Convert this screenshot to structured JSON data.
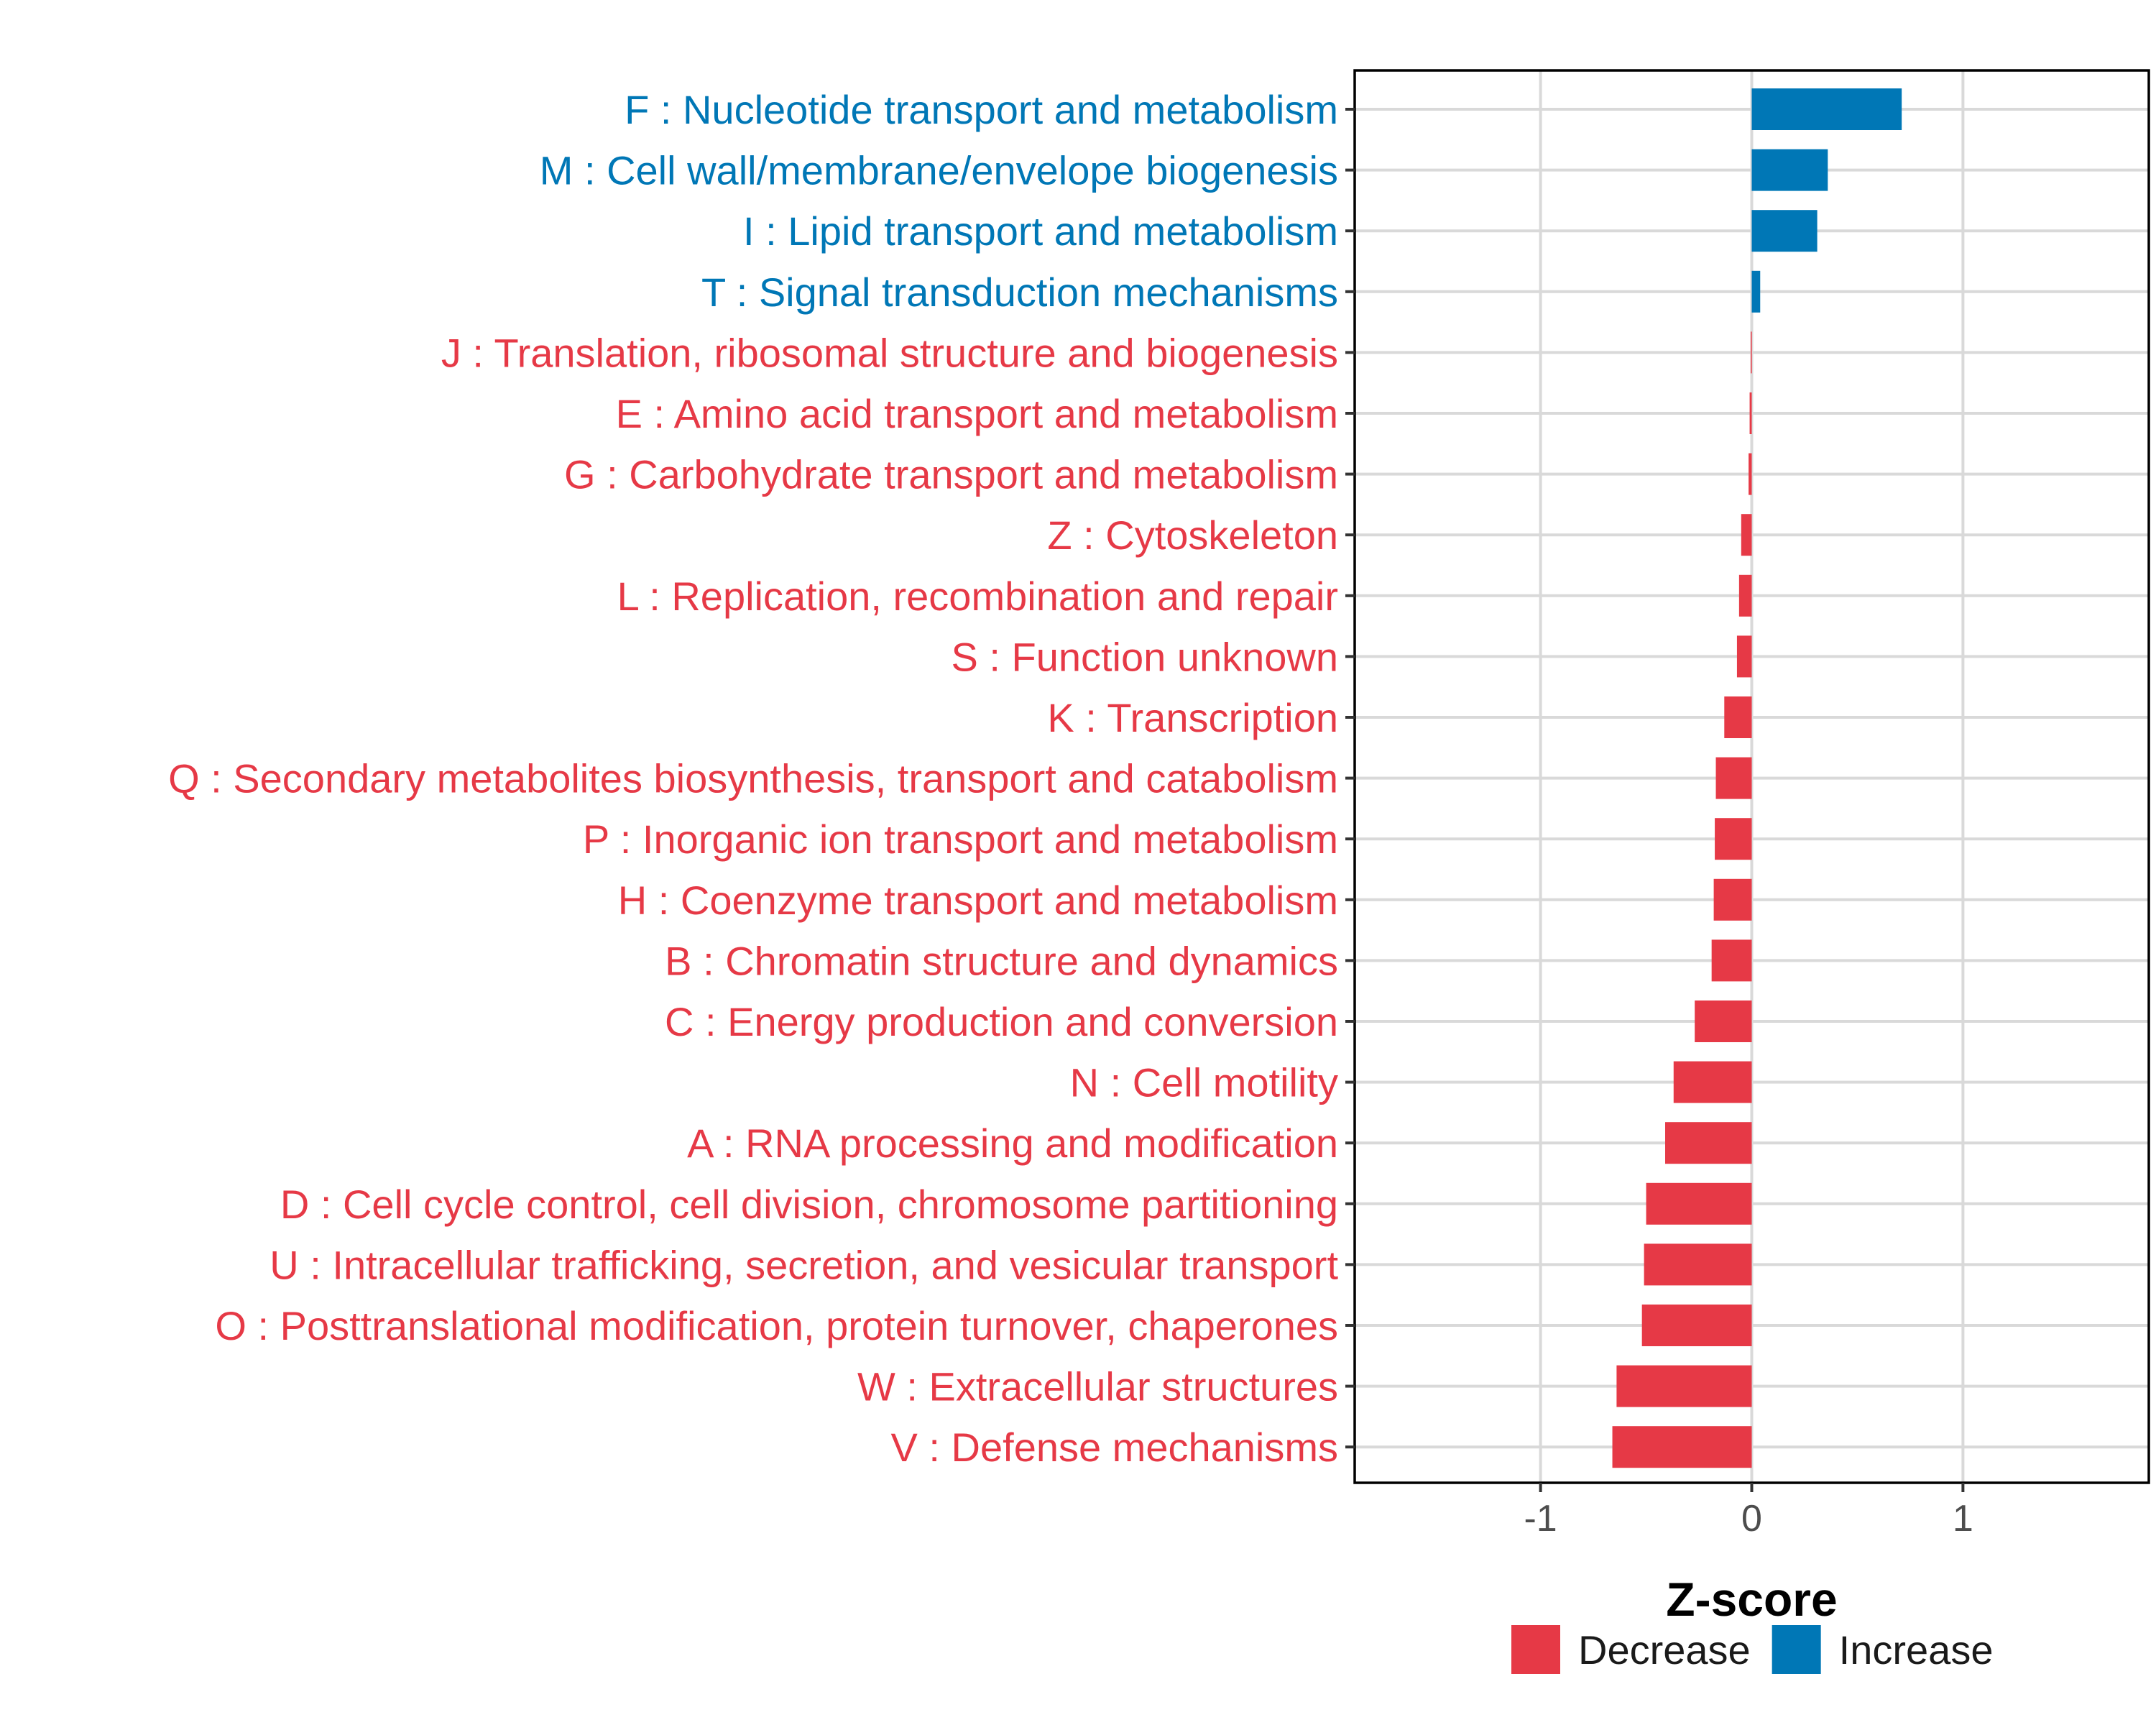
{
  "colors": {
    "decrease": "#E63946",
    "increase": "#0077B6"
  },
  "chart_data": {
    "type": "bar",
    "orientation": "horizontal",
    "title": "",
    "xlabel": "Z-score",
    "ylabel": "",
    "xlim": [
      -1.88,
      1.88
    ],
    "x_ticks": [
      {
        "value": -1,
        "label": "-1"
      },
      {
        "value": 0,
        "label": "0"
      },
      {
        "value": 1,
        "label": "1"
      }
    ],
    "grid": true,
    "legend_position": "bottom",
    "legend": [
      {
        "key": "decrease",
        "label": "Decrease"
      },
      {
        "key": "increase",
        "label": "Increase"
      }
    ],
    "categories": [
      "F : Nucleotide transport and metabolism",
      "M : Cell wall/membrane/envelope biogenesis",
      "I : Lipid transport and metabolism",
      "T : Signal transduction mechanisms",
      "J : Translation, ribosomal structure and biogenesis",
      "E : Amino acid transport and metabolism",
      "G : Carbohydrate transport and metabolism",
      "Z : Cytoskeleton",
      "L : Replication, recombination and repair",
      "S : Function unknown",
      "K : Transcription",
      "Q : Secondary metabolites biosynthesis, transport and catabolism",
      "P : Inorganic ion transport and metabolism",
      "H : Coenzyme transport and metabolism",
      "B : Chromatin structure and dynamics",
      "C : Energy production and conversion",
      "N : Cell motility",
      "A : RNA processing and modification",
      "D : Cell cycle control, cell division, chromosome partitioning",
      "U : Intracellular trafficking, secretion, and vesicular transport",
      "O : Posttranslational modification, protein turnover, chaperones",
      "W : Extracellular structures",
      "V : Defense mechanisms"
    ],
    "values": [
      0.71,
      0.36,
      0.31,
      0.04,
      -0.005,
      -0.01,
      -0.015,
      -0.05,
      -0.06,
      -0.07,
      -0.13,
      -0.17,
      -0.175,
      -0.18,
      -0.19,
      -0.27,
      -0.37,
      -0.41,
      -0.5,
      -0.51,
      -0.52,
      -0.64,
      -0.66
    ],
    "groups": [
      "increase",
      "increase",
      "increase",
      "increase",
      "decrease",
      "decrease",
      "decrease",
      "decrease",
      "decrease",
      "decrease",
      "decrease",
      "decrease",
      "decrease",
      "decrease",
      "decrease",
      "decrease",
      "decrease",
      "decrease",
      "decrease",
      "decrease",
      "decrease",
      "decrease",
      "decrease"
    ]
  }
}
